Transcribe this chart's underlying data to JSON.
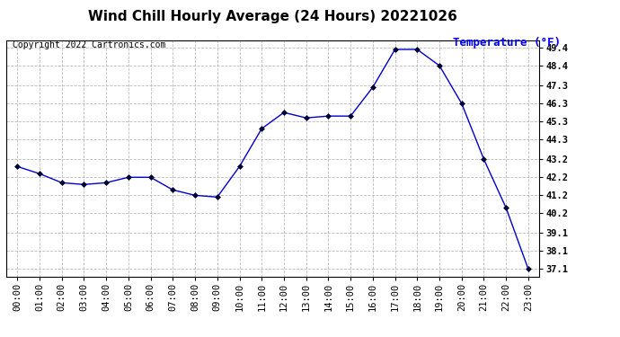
{
  "title": "Wind Chill Hourly Average (24 Hours) 20221026",
  "copyright_text": "Copyright 2022 Cartronics.com",
  "ylabel": "Temperature (°F)",
  "hours": [
    "00:00",
    "01:00",
    "02:00",
    "03:00",
    "04:00",
    "05:00",
    "06:00",
    "07:00",
    "08:00",
    "09:00",
    "10:00",
    "11:00",
    "12:00",
    "13:00",
    "14:00",
    "15:00",
    "16:00",
    "17:00",
    "18:00",
    "19:00",
    "20:00",
    "21:00",
    "22:00",
    "23:00"
  ],
  "x_values": [
    0,
    1,
    2,
    3,
    4,
    5,
    6,
    7,
    8,
    9,
    10,
    11,
    12,
    13,
    14,
    15,
    16,
    17,
    18,
    19,
    20,
    21,
    22,
    23
  ],
  "data_values": [
    42.8,
    42.4,
    41.9,
    41.8,
    41.9,
    42.2,
    42.2,
    41.5,
    41.2,
    41.1,
    42.8,
    44.9,
    45.8,
    45.5,
    45.6,
    45.6,
    47.2,
    49.3,
    49.3,
    48.4,
    46.3,
    43.2,
    40.5,
    37.1
  ],
  "ylim": [
    36.7,
    49.8
  ],
  "yticks": [
    37.1,
    38.1,
    39.1,
    40.2,
    41.2,
    42.2,
    43.2,
    44.3,
    45.3,
    46.3,
    47.3,
    48.4,
    49.4
  ],
  "line_color": "#0000cc",
  "marker_color": "#000033",
  "title_color": "#000000",
  "ylabel_color": "#0000ff",
  "copyright_color": "#000000",
  "bg_color": "#ffffff",
  "grid_color": "#aaaaaa",
  "title_fontsize": 11,
  "ylabel_fontsize": 9,
  "copyright_fontsize": 7,
  "tick_fontsize": 7.5
}
